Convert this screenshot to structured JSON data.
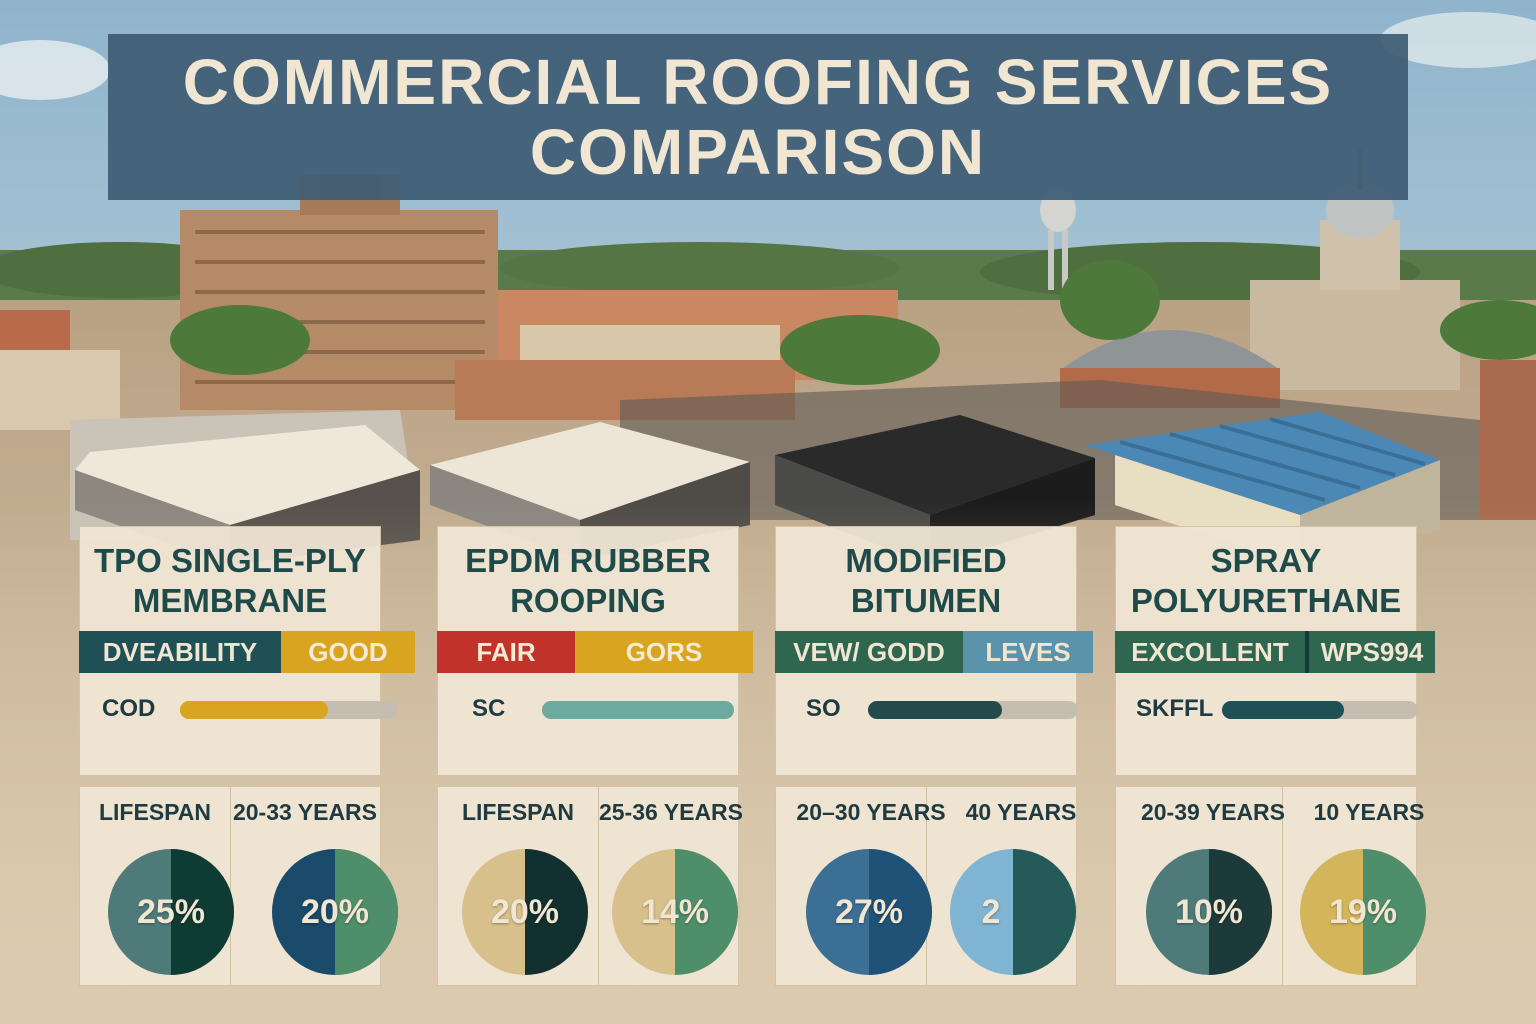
{
  "title": {
    "line1": "COMMERCIAL ROOFING SERVICES",
    "line2": "COMPARISON"
  },
  "cards": [
    {
      "name": "tpo",
      "title_line1": "TPO SINGLE-PLY",
      "title_line2": "MEMBRANE",
      "rating": [
        {
          "label": "DVEABILITY",
          "bg": "#1e5055",
          "fg": "#f1e6d2"
        },
        {
          "label": "GOOD",
          "bg": "#d9a520",
          "fg": "#f5ead4"
        }
      ],
      "meter": {
        "label": "COD",
        "level": 0.68,
        "color": "#d9a520"
      },
      "stats": {
        "left_label": "LIFESPAN",
        "right_label": "20-33 YEARS",
        "left_pie": {
          "text": "25%",
          "color_a": "#4e7b79",
          "color_b": "#0f3b35"
        },
        "right_pie": {
          "text": "20%",
          "color_a": "#1a4b6a",
          "color_b": "#4e8e6a"
        }
      }
    },
    {
      "name": "epdm",
      "title_line1": "EPDM RUBBER",
      "title_line2": "ROOPING",
      "rating": [
        {
          "label": "FAIR",
          "bg": "#c0322a",
          "fg": "#f5ead4"
        },
        {
          "label": "GORS",
          "bg": "#d9a520",
          "fg": "#f5ead4"
        }
      ],
      "meter": {
        "label": "SC",
        "level": 1.0,
        "color": "#6ea99f"
      },
      "stats": {
        "left_label": "LIFESPAN",
        "right_label": "25-36 YEARS",
        "left_pie": {
          "text": "20%",
          "color_a": "#d8c08c",
          "color_b": "#11302f"
        },
        "right_pie": {
          "text": "14%",
          "color_a": "#d8c08c",
          "color_b": "#4e8e6a"
        }
      }
    },
    {
      "name": "modified-bitumen",
      "title_line1": "MODIFIED",
      "title_line2": "BITUMEN",
      "rating": [
        {
          "label": "VEW/ GODD",
          "bg": "#2f6650",
          "fg": "#f1e6d2"
        },
        {
          "label": "LEVES",
          "bg": "#5b93ab",
          "fg": "#f1e6d2"
        }
      ],
      "meter": {
        "label": "SO",
        "level": 0.64,
        "color": "#244b4b"
      },
      "stats": {
        "left_label": "20–30 YEARS",
        "right_label": "40 YEARS",
        "left_pie": {
          "text": "27%",
          "color_a": "#3b6f96",
          "color_b": "#1f5276"
        },
        "right_pie": {
          "text": "2",
          "color_a": "#7fb4d2",
          "color_b": "#245a57"
        }
      }
    },
    {
      "name": "spray-polyurethane",
      "title_line1": "SPRAY",
      "title_line2": "POLYURETHANE",
      "rating": [
        {
          "label": "EXCOLLENT",
          "bg": "#2f6650",
          "fg": "#f1e6d2"
        },
        {
          "label": "WPS994",
          "bg": "#2f6650",
          "fg": "#f1e6d2"
        }
      ],
      "meter": {
        "label": "SKFFL",
        "level": 0.62,
        "color": "#1e5055"
      },
      "stats": {
        "left_label": "20-39 YEARS",
        "right_label": "10 YEARS",
        "left_pie": {
          "text": "10%",
          "color_a": "#4e7b79",
          "color_b": "#1c3a39"
        },
        "right_pie": {
          "text": "19%",
          "color_a": "#d3b55c",
          "color_b": "#4e8e6a"
        }
      }
    }
  ]
}
